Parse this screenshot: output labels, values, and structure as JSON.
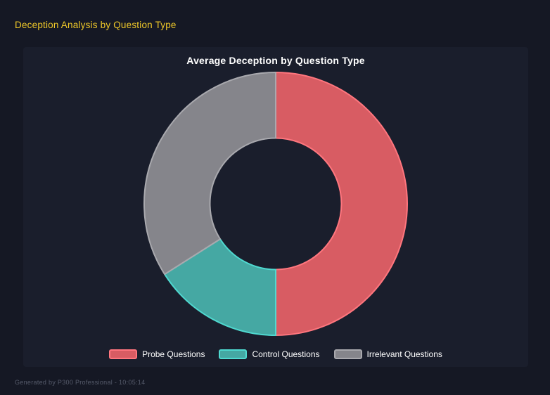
{
  "page": {
    "title": "Deception Analysis by Question Type",
    "footer": "Generated by P300 Professional - 10:05:14"
  },
  "colors": {
    "page_background": "#151824",
    "panel_background": "#1a1e2c",
    "page_title": "#f0c929",
    "chart_title": "#ffffff",
    "legend_text": "#ffffff",
    "footer_text": "#565b6b"
  },
  "chart_data": {
    "type": "pie",
    "variant": "donut",
    "title": "Average Deception by Question Type",
    "categories": [
      "Probe Questions",
      "Control Questions",
      "Irrelevant Questions"
    ],
    "values": [
      50,
      16,
      34
    ],
    "unit": "percent of circle (no numeric labels shown)",
    "colors": [
      "#d85c63",
      "#45a8a3",
      "#85858b"
    ],
    "border_colors": [
      "#ff767e",
      "#4fd9d0",
      "#a9a9ae"
    ],
    "start_angle_deg": 0,
    "direction": "clockwise",
    "cutout_ratio": 0.5,
    "legend_position": "bottom",
    "grid": false
  }
}
